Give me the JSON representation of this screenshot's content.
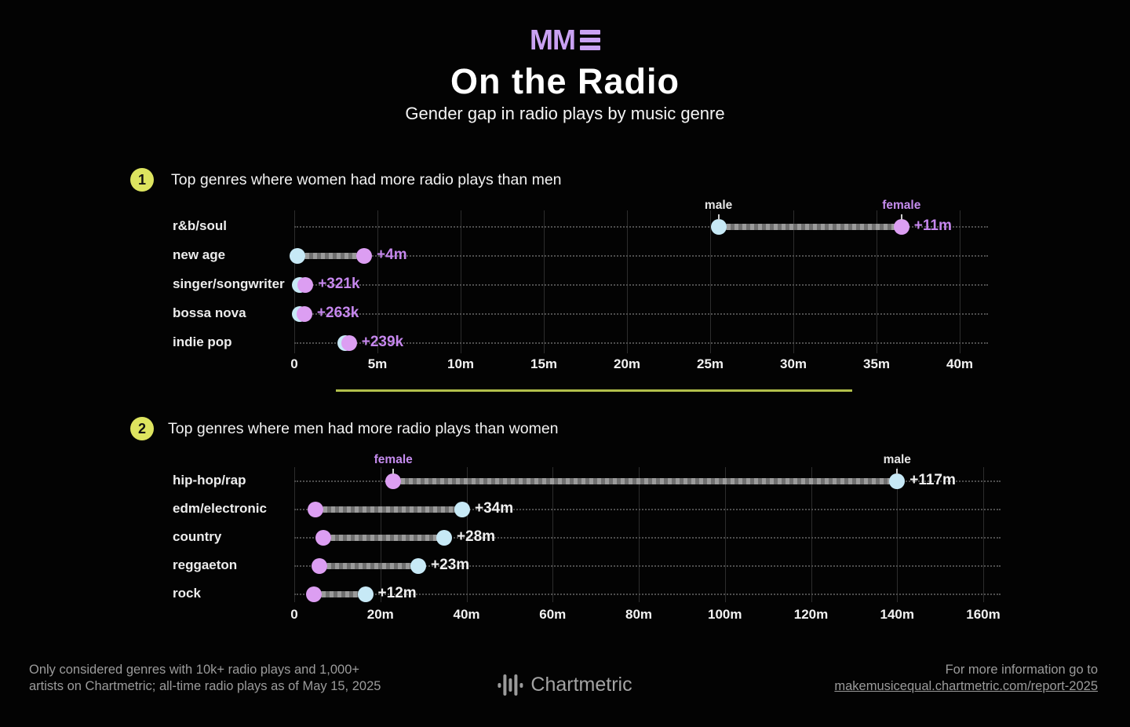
{
  "header": {
    "logo_text": "MM",
    "title": "On the Radio",
    "subtitle": "Gender gap in radio plays by music genre"
  },
  "colors": {
    "accent_purple": "#c9a1f2",
    "female_dot": "#dc9ef2",
    "male_dot": "#c7e9f6",
    "badge": "#dde45f",
    "divider": "#b2bf4b"
  },
  "sections": [
    {
      "badge": "1",
      "heading": "Top genres where women had more radio plays than men"
    },
    {
      "badge": "2",
      "heading": "Top genres where men had more radio plays than women"
    }
  ],
  "chart_data": [
    {
      "type": "dumbbell",
      "title": "Top genres where women had more radio plays than men",
      "unit": "all-time radio plays (millions)",
      "categories": [
        "r&b/soul",
        "new age",
        "singer/songwriter",
        "bossa nova",
        "indie pop"
      ],
      "series": [
        {
          "name": "male",
          "color": "#c7e9f6",
          "values": [
            25.5,
            0.2,
            0.35,
            0.35,
            3.05
          ]
        },
        {
          "name": "female",
          "color": "#dc9ef2",
          "values": [
            36.5,
            4.2,
            0.67,
            0.61,
            3.29
          ]
        }
      ],
      "gap_labels": [
        "+11m",
        "+4m",
        "+321k",
        "+263k",
        "+239k"
      ],
      "gap_label_color": "#c687ee",
      "xticks": [
        "0",
        "5m",
        "10m",
        "15m",
        "20m",
        "25m",
        "30m",
        "35m",
        "40m"
      ],
      "xlim": [
        0,
        40
      ],
      "grid": true,
      "point_labels": [
        {
          "series": "male",
          "text": "male",
          "color": "#e5e5e5"
        },
        {
          "series": "female",
          "text": "female",
          "color": "#c58cee"
        }
      ]
    },
    {
      "type": "dumbbell",
      "title": "Top genres where men had more radio plays than women",
      "unit": "all-time radio plays (millions)",
      "categories": [
        "hip-hop/rap",
        "edm/electronic",
        "country",
        "reggaeton",
        "rock"
      ],
      "series": [
        {
          "name": "female",
          "color": "#dc9ef2",
          "values": [
            23,
            5,
            6.8,
            5.8,
            4.5
          ]
        },
        {
          "name": "male",
          "color": "#c7e9f6",
          "values": [
            140,
            39,
            34.8,
            28.8,
            16.5
          ]
        }
      ],
      "gap_labels": [
        "+117m",
        "+34m",
        "+28m",
        "+23m",
        "+12m"
      ],
      "gap_label_color": "#f0f0f0",
      "xticks": [
        "0",
        "20m",
        "40m",
        "60m",
        "80m",
        "100m",
        "120m",
        "140m",
        "160m"
      ],
      "xlim": [
        0,
        160
      ],
      "grid": true,
      "point_labels": [
        {
          "series": "female",
          "text": "female",
          "color": "#c58cee"
        },
        {
          "series": "male",
          "text": "male",
          "color": "#e5e5e5"
        }
      ]
    }
  ],
  "footer": {
    "note_line1": "Only considered genres with 10k+ radio plays and 1,000+",
    "note_line2": "artists on Chartmetric; all-time radio plays as of May 15, 2025",
    "brand": "Chartmetric",
    "info_line": "For more information go to",
    "link": "makemusicequal.chartmetric.com/report-2025"
  }
}
